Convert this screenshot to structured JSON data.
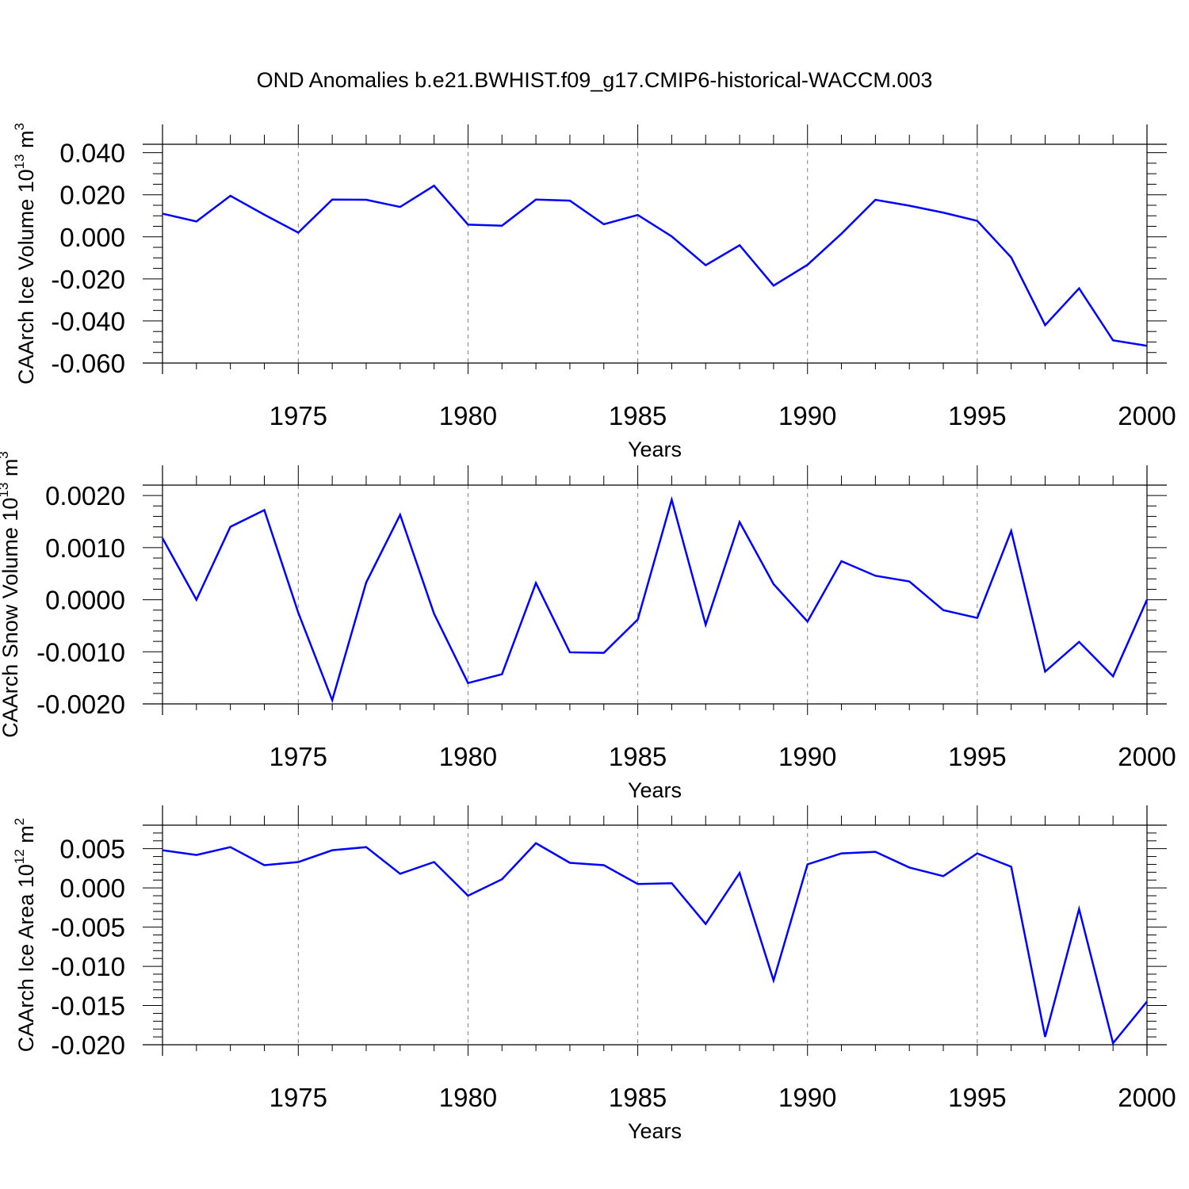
{
  "title": "OND Anomalies b.e21.BWHIST.f09_g17.CMIP6-historical-WACCM.003",
  "colors": {
    "line": "#0000ff",
    "axis": "#000000",
    "grid": "#7f7f7f"
  },
  "chart_data": [
    {
      "type": "line",
      "ylabel": "CAArch Ice Volume 10",
      "ylabel_exp": "13",
      "ylabel_unit": " m",
      "ylabel_unit_exp": "3",
      "xlabel": "Years",
      "xlim": [
        1971,
        2000
      ],
      "ylim": [
        -0.06,
        0.044
      ],
      "yticks": [
        -0.06,
        -0.04,
        -0.02,
        0.0,
        0.02,
        0.04
      ],
      "ytick_labels": [
        "-0.060",
        "-0.040",
        "-0.020",
        "0.000",
        "0.020",
        "0.040"
      ],
      "yminor_step": 0.005,
      "xticks": [
        1975,
        1980,
        1985,
        1990,
        1995,
        2000
      ],
      "xtick_labels": [
        "1975",
        "1980",
        "1985",
        "1990",
        "1995",
        "2000"
      ],
      "grid_x": [
        1975,
        1980,
        1985,
        1990,
        1995
      ],
      "x": [
        1971,
        1972,
        1973,
        1974,
        1975,
        1976,
        1977,
        1978,
        1979,
        1980,
        1981,
        1982,
        1983,
        1984,
        1985,
        1986,
        1987,
        1988,
        1989,
        1990,
        1991,
        1992,
        1993,
        1994,
        1995,
        1996,
        1997,
        1998,
        1999,
        2000
      ],
      "series": [
        {
          "name": "ice_volume",
          "values": [
            0.011,
            0.0073,
            0.0195,
            0.0105,
            0.002,
            0.0177,
            0.0176,
            0.0142,
            0.0243,
            0.0058,
            0.0053,
            0.0177,
            0.0172,
            0.006,
            0.0104,
            0.0002,
            -0.0135,
            -0.004,
            -0.0232,
            -0.0133,
            0.0015,
            0.0176,
            0.0148,
            0.0115,
            0.0076,
            -0.0098,
            -0.042,
            -0.0245,
            -0.0492,
            -0.0518
          ]
        }
      ]
    },
    {
      "type": "line",
      "ylabel": "CAArch Snow Volume 10",
      "ylabel_exp": "13",
      "ylabel_unit": " m",
      "ylabel_unit_exp": "3",
      "xlabel": "Years",
      "xlim": [
        1971,
        2000
      ],
      "ylim": [
        -0.002,
        0.0022
      ],
      "yticks": [
        -0.002,
        -0.001,
        0.0,
        0.001,
        0.002
      ],
      "ytick_labels": [
        "-0.0020",
        "-0.0010",
        "0.0000",
        "0.0010",
        "0.0020"
      ],
      "yminor_step": 0.0002,
      "xticks": [
        1975,
        1980,
        1985,
        1990,
        1995,
        2000
      ],
      "xtick_labels": [
        "1975",
        "1980",
        "1985",
        "1990",
        "1995",
        "2000"
      ],
      "grid_x": [
        1975,
        1980,
        1985,
        1990,
        1995
      ],
      "x": [
        1971,
        1972,
        1973,
        1974,
        1975,
        1976,
        1977,
        1978,
        1979,
        1980,
        1981,
        1982,
        1983,
        1984,
        1985,
        1986,
        1987,
        1988,
        1989,
        1990,
        1991,
        1992,
        1993,
        1994,
        1995,
        1996,
        1997,
        1998,
        1999,
        2000
      ],
      "series": [
        {
          "name": "snow_volume",
          "values": [
            0.00118,
            0.0,
            0.0014,
            0.00172,
            -0.00025,
            -0.00193,
            0.00033,
            0.00163,
            -0.00027,
            -0.0016,
            -0.00143,
            0.00032,
            -0.00101,
            -0.00102,
            -0.00038,
            0.00192,
            -0.00048,
            0.00149,
            0.0003,
            -0.00042,
            0.00074,
            0.00046,
            0.00035,
            -0.0002,
            -0.00035,
            0.00132,
            -0.00138,
            -0.00081,
            -0.00147,
            0.0
          ]
        }
      ]
    },
    {
      "type": "line",
      "ylabel": "CAArch Ice Area 10",
      "ylabel_exp": "12",
      "ylabel_unit": " m",
      "ylabel_unit_exp": "2",
      "xlabel": "Years",
      "xlim": [
        1971,
        2000
      ],
      "ylim": [
        -0.02,
        0.008
      ],
      "yticks": [
        -0.02,
        -0.015,
        -0.01,
        -0.005,
        0.0,
        0.005
      ],
      "ytick_labels": [
        "-0.020",
        "-0.015",
        "-0.010",
        "-0.005",
        "0.000",
        "0.005"
      ],
      "yminor_step": 0.001,
      "xticks": [
        1975,
        1980,
        1985,
        1990,
        1995,
        2000
      ],
      "xtick_labels": [
        "1975",
        "1980",
        "1985",
        "1990",
        "1995",
        "2000"
      ],
      "grid_x": [
        1975,
        1980,
        1985,
        1990,
        1995
      ],
      "x": [
        1971,
        1972,
        1973,
        1974,
        1975,
        1976,
        1977,
        1978,
        1979,
        1980,
        1981,
        1982,
        1983,
        1984,
        1985,
        1986,
        1987,
        1988,
        1989,
        1990,
        1991,
        1992,
        1993,
        1994,
        1995,
        1996,
        1997,
        1998,
        1999,
        2000
      ],
      "series": [
        {
          "name": "ice_area",
          "values": [
            0.0048,
            0.0042,
            0.0052,
            0.0029,
            0.0033,
            0.0048,
            0.0052,
            0.0018,
            0.0033,
            -0.001,
            0.0011,
            0.0057,
            0.0032,
            0.0029,
            0.0005,
            0.0006,
            -0.0046,
            0.0019,
            -0.0118,
            0.003,
            0.0044,
            0.0046,
            0.0026,
            0.0015,
            0.0044,
            0.0027,
            -0.019,
            -0.0027,
            -0.0198,
            -0.0145
          ]
        }
      ]
    }
  ]
}
